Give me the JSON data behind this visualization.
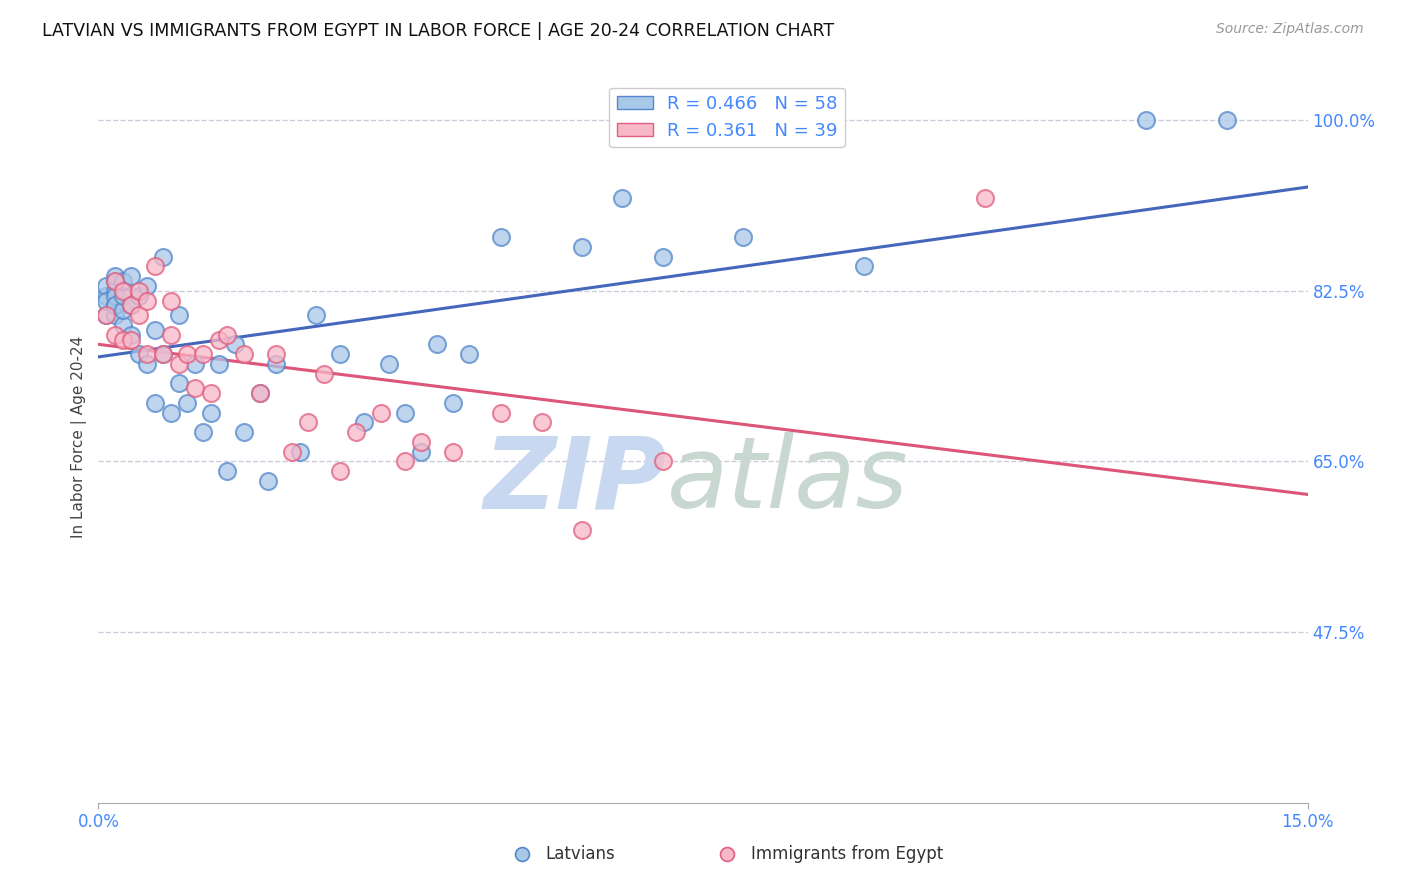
{
  "title": "LATVIAN VS IMMIGRANTS FROM EGYPT IN LABOR FORCE | AGE 20-24 CORRELATION CHART",
  "source": "Source: ZipAtlas.com",
  "ylabel": "In Labor Force | Age 20-24",
  "ytick_labels": [
    "100.0%",
    "82.5%",
    "65.0%",
    "47.5%"
  ],
  "ytick_values": [
    1.0,
    0.825,
    0.65,
    0.475
  ],
  "xlim": [
    0.0,
    0.15
  ],
  "ylim": [
    0.3,
    1.05
  ],
  "R_latvian": 0.466,
  "N_latvian": 58,
  "R_egypt": 0.361,
  "N_egypt": 39,
  "color_latvian_fill": "#a8c8e8",
  "color_latvian_edge": "#5588cc",
  "color_egypt_fill": "#f8b8c8",
  "color_egypt_edge": "#e06080",
  "color_line_latvian": "#4466bb",
  "color_line_egypt": "#dd5577",
  "color_right_axis": "#4488FF",
  "color_xtick": "#4488FF",
  "background_color": "#ffffff",
  "grid_color": "#ccccdd",
  "title_fontsize": 12.5,
  "source_fontsize": 10,
  "legend_fontsize": 13,
  "latvian_x": [
    0.001,
    0.001,
    0.001,
    0.001,
    0.002,
    0.002,
    0.002,
    0.002,
    0.002,
    0.002,
    0.002,
    0.003,
    0.003,
    0.003,
    0.003,
    0.004,
    0.004,
    0.004,
    0.005,
    0.005,
    0.006,
    0.006,
    0.007,
    0.007,
    0.008,
    0.008,
    0.009,
    0.01,
    0.01,
    0.011,
    0.012,
    0.013,
    0.014,
    0.015,
    0.016,
    0.017,
    0.018,
    0.02,
    0.021,
    0.022,
    0.025,
    0.027,
    0.03,
    0.033,
    0.036,
    0.038,
    0.04,
    0.042,
    0.044,
    0.046,
    0.05,
    0.06,
    0.065,
    0.07,
    0.08,
    0.095,
    0.13,
    0.14
  ],
  "latvian_y": [
    0.8,
    0.82,
    0.83,
    0.815,
    0.8,
    0.81,
    0.825,
    0.835,
    0.84,
    0.82,
    0.81,
    0.79,
    0.805,
    0.82,
    0.835,
    0.78,
    0.81,
    0.84,
    0.76,
    0.82,
    0.75,
    0.83,
    0.71,
    0.785,
    0.76,
    0.86,
    0.7,
    0.73,
    0.8,
    0.71,
    0.75,
    0.68,
    0.7,
    0.75,
    0.64,
    0.77,
    0.68,
    0.72,
    0.63,
    0.75,
    0.66,
    0.8,
    0.76,
    0.69,
    0.75,
    0.7,
    0.66,
    0.77,
    0.71,
    0.76,
    0.88,
    0.87,
    0.92,
    0.86,
    0.88,
    0.85,
    1.0,
    1.0
  ],
  "egypt_x": [
    0.001,
    0.002,
    0.002,
    0.003,
    0.003,
    0.004,
    0.004,
    0.005,
    0.005,
    0.006,
    0.006,
    0.007,
    0.008,
    0.009,
    0.009,
    0.01,
    0.011,
    0.012,
    0.013,
    0.014,
    0.015,
    0.016,
    0.018,
    0.02,
    0.022,
    0.024,
    0.026,
    0.028,
    0.03,
    0.032,
    0.035,
    0.038,
    0.04,
    0.044,
    0.05,
    0.055,
    0.06,
    0.07,
    0.11
  ],
  "egypt_y": [
    0.8,
    0.78,
    0.835,
    0.775,
    0.825,
    0.775,
    0.81,
    0.8,
    0.825,
    0.76,
    0.815,
    0.85,
    0.76,
    0.78,
    0.815,
    0.75,
    0.76,
    0.725,
    0.76,
    0.72,
    0.775,
    0.78,
    0.76,
    0.72,
    0.76,
    0.66,
    0.69,
    0.74,
    0.64,
    0.68,
    0.7,
    0.65,
    0.67,
    0.66,
    0.7,
    0.69,
    0.58,
    0.65,
    0.92
  ],
  "watermark_zip": "ZIP",
  "watermark_atlas": "atlas",
  "watermark_color_zip": "#c8d8f0",
  "watermark_color_atlas": "#c8d8d0"
}
